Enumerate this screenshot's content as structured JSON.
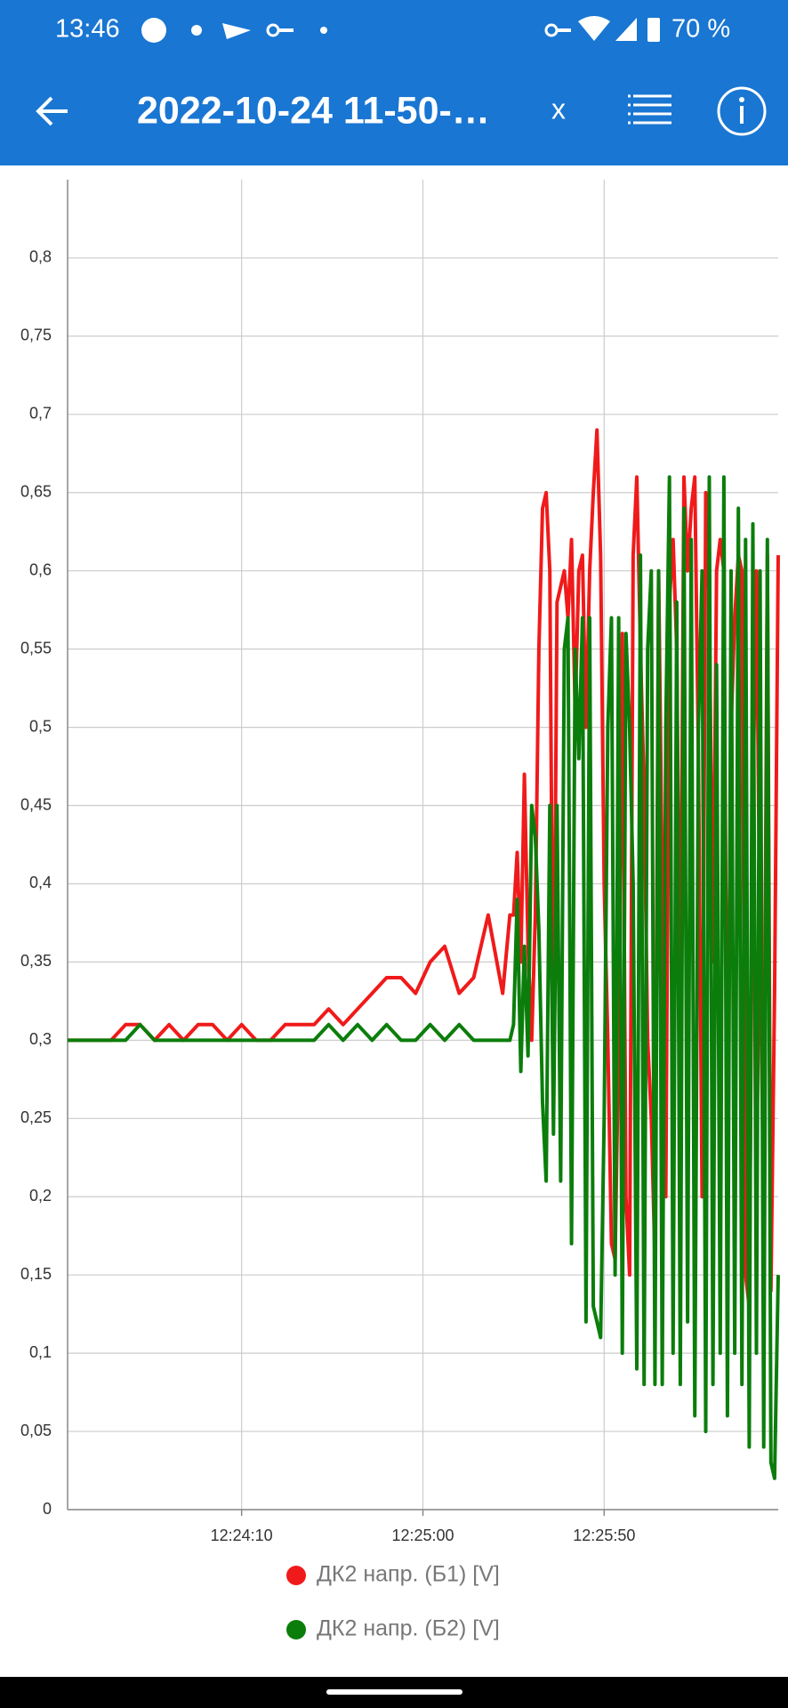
{
  "status_bar": {
    "time": "13:46",
    "battery": "70 %"
  },
  "app_bar": {
    "title": "2022-10-24 11-50-…",
    "close": "x"
  },
  "chart_data": {
    "type": "line",
    "x": [
      "12:23:22",
      "12:23:26",
      "12:23:30",
      "12:23:34",
      "12:23:38",
      "12:23:42",
      "12:23:46",
      "12:23:50",
      "12:23:54",
      "12:23:58",
      "12:24:02",
      "12:24:06",
      "12:24:10",
      "12:24:14",
      "12:24:18",
      "12:24:22",
      "12:24:26",
      "12:24:30",
      "12:24:34",
      "12:24:38",
      "12:24:42",
      "12:24:46",
      "12:24:50",
      "12:24:54",
      "12:24:58",
      "12:25:02",
      "12:25:06",
      "12:25:10",
      "12:25:14",
      "12:25:18",
      "12:25:22",
      "12:25:24",
      "12:25:25",
      "12:25:26",
      "12:25:27",
      "12:25:28",
      "12:25:29",
      "12:25:30",
      "12:25:31",
      "12:25:32",
      "12:25:33",
      "12:25:34",
      "12:25:35",
      "12:25:36",
      "12:25:37",
      "12:25:38",
      "12:25:39",
      "12:25:40",
      "12:25:41",
      "12:25:42",
      "12:25:43",
      "12:25:44",
      "12:25:45",
      "12:25:46",
      "12:25:47",
      "12:25:48",
      "12:25:49",
      "12:25:50",
      "12:25:51",
      "12:25:52",
      "12:25:53",
      "12:25:54",
      "12:25:55",
      "12:25:56",
      "12:25:57",
      "12:25:58",
      "12:25:59",
      "12:26:00",
      "12:26:01",
      "12:26:02",
      "12:26:03",
      "12:26:04",
      "12:26:05",
      "12:26:06",
      "12:26:07",
      "12:26:08",
      "12:26:09",
      "12:26:10",
      "12:26:11",
      "12:26:12",
      "12:26:13",
      "12:26:14",
      "12:26:15",
      "12:26:16",
      "12:26:17",
      "12:26:18",
      "12:26:19",
      "12:26:20",
      "12:26:21",
      "12:26:22",
      "12:26:23",
      "12:26:24",
      "12:26:25",
      "12:26:26",
      "12:26:27",
      "12:26:28",
      "12:26:29",
      "12:26:30",
      "12:26:31",
      "12:26:32",
      "12:26:33",
      "12:26:34",
      "12:26:35",
      "12:26:36",
      "12:26:37",
      "12:26:38"
    ],
    "series": [
      {
        "name": "ДК2 напр. (Б1) [V]",
        "color": "#f01a1a",
        "values": [
          0.3,
          0.3,
          0.3,
          0.3,
          0.31,
          0.31,
          0.3,
          0.31,
          0.3,
          0.31,
          0.31,
          0.3,
          0.31,
          0.3,
          0.3,
          0.31,
          0.31,
          0.31,
          0.32,
          0.31,
          0.32,
          0.33,
          0.34,
          0.34,
          0.33,
          0.35,
          0.36,
          0.33,
          0.34,
          0.38,
          0.33,
          0.38,
          0.38,
          0.42,
          0.35,
          0.47,
          0.36,
          0.3,
          0.38,
          0.55,
          0.64,
          0.65,
          0.6,
          0.27,
          0.58,
          0.59,
          0.6,
          0.57,
          0.62,
          0.51,
          0.6,
          0.61,
          0.5,
          0.6,
          0.65,
          0.69,
          0.61,
          0.4,
          0.3,
          0.17,
          0.16,
          0.3,
          0.56,
          0.2,
          0.15,
          0.61,
          0.66,
          0.55,
          0.46,
          0.3,
          0.25,
          0.16,
          0.6,
          0.4,
          0.2,
          0.58,
          0.62,
          0.55,
          0.3,
          0.66,
          0.6,
          0.64,
          0.66,
          0.48,
          0.2,
          0.65,
          0.58,
          0.35,
          0.6,
          0.62,
          0.6,
          0.23,
          0.5,
          0.57,
          0.61,
          0.6,
          0.15,
          0.13,
          0.45,
          0.6,
          0.35,
          0.2,
          0.61,
          0.14,
          0.33,
          0.61
        ]
      },
      {
        "name": "ДК2 напр. (Б2) [V]",
        "color": "#0b7d0b",
        "values": [
          0.3,
          0.3,
          0.3,
          0.3,
          0.3,
          0.31,
          0.3,
          0.3,
          0.3,
          0.3,
          0.3,
          0.3,
          0.3,
          0.3,
          0.3,
          0.3,
          0.3,
          0.3,
          0.31,
          0.3,
          0.31,
          0.3,
          0.31,
          0.3,
          0.3,
          0.31,
          0.3,
          0.31,
          0.3,
          0.3,
          0.3,
          0.3,
          0.31,
          0.39,
          0.28,
          0.36,
          0.29,
          0.45,
          0.43,
          0.37,
          0.26,
          0.21,
          0.45,
          0.24,
          0.45,
          0.21,
          0.55,
          0.57,
          0.17,
          0.55,
          0.48,
          0.57,
          0.12,
          0.57,
          0.13,
          0.12,
          0.11,
          0.25,
          0.5,
          0.57,
          0.15,
          0.57,
          0.1,
          0.56,
          0.5,
          0.4,
          0.09,
          0.61,
          0.08,
          0.55,
          0.6,
          0.08,
          0.6,
          0.08,
          0.5,
          0.66,
          0.1,
          0.58,
          0.08,
          0.64,
          0.12,
          0.62,
          0.06,
          0.5,
          0.6,
          0.05,
          0.66,
          0.08,
          0.54,
          0.1,
          0.66,
          0.06,
          0.6,
          0.1,
          0.64,
          0.08,
          0.62,
          0.04,
          0.63,
          0.1,
          0.6,
          0.04,
          0.62,
          0.03,
          0.02,
          0.15
        ]
      }
    ],
    "xlim": [
      "12:23:22",
      "12:26:38"
    ],
    "xticks": [
      "12:24:10",
      "12:25:00",
      "12:25:50"
    ],
    "ylim": [
      0,
      0.85
    ],
    "yticks": [
      0,
      {
        "value": 0.05,
        "label": "0,05"
      },
      {
        "value": 0.1,
        "label": "0,1"
      },
      {
        "value": 0.15,
        "label": "0,15"
      },
      {
        "value": 0.2,
        "label": "0,2"
      },
      {
        "value": 0.25,
        "label": "0,25"
      },
      {
        "value": 0.3,
        "label": "0,3"
      },
      {
        "value": 0.35,
        "label": "0,35"
      },
      {
        "value": 0.4,
        "label": "0,4"
      },
      {
        "value": 0.45,
        "label": "0,45"
      },
      {
        "value": 0.5,
        "label": "0,5"
      },
      {
        "value": 0.55,
        "label": "0,55"
      },
      {
        "value": 0.6,
        "label": "0,6"
      },
      {
        "value": 0.65,
        "label": "0,65"
      },
      {
        "value": 0.7,
        "label": "0,7"
      },
      {
        "value": 0.75,
        "label": "0,75"
      },
      {
        "value": 0.8,
        "label": "0,8"
      }
    ],
    "grid": true
  }
}
